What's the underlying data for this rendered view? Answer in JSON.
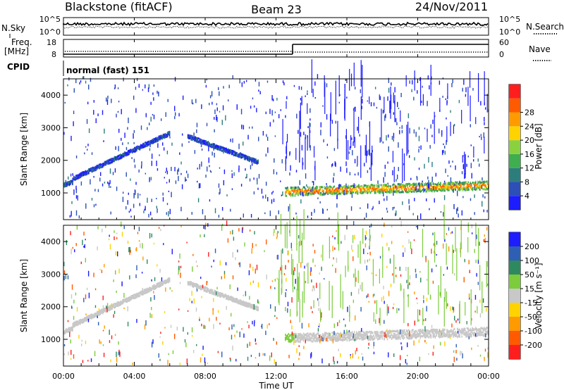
{
  "header": {
    "radar": "Blackstone (fitACF)",
    "beam": "Beam 23",
    "date": "24/Nov/2011"
  },
  "status_panels": {
    "nsky_label": "N.Sky",
    "nsky_ticks": [
      "10^5",
      "10^0"
    ],
    "nsearch_ticks": [
      "10^5",
      "10^0"
    ],
    "nsearch_label": "N.Search",
    "freq_label_1": "Freq.",
    "freq_label_2": "[MHz]",
    "freq_ticks": [
      "18",
      "8"
    ],
    "nave_ticks": [
      "60",
      "0"
    ],
    "nave_label": "Nave",
    "cpid_label": "CPID",
    "cpid_value": "normal (fast) 151"
  },
  "colors": {
    "power_scale": [
      "#1d1dff",
      "#2c4fb8",
      "#2e7d7d",
      "#3fae4f",
      "#8ad13f",
      "#ffd200",
      "#ff9a00",
      "#ff5a00",
      "#ff1e1e"
    ],
    "velocity_scale": [
      "#1d1dff",
      "#2f5fb5",
      "#2e8a5e",
      "#7ccc3c",
      "#c8c8c8",
      "#ffd200",
      "#ff9a00",
      "#ff5a00",
      "#ff1e1e"
    ]
  },
  "chart_data": [
    {
      "type": "heatmap",
      "panel": "power",
      "xlabel": "Time UT",
      "ylabel": "Slant Range [km]",
      "x_ticks": [
        "00:00",
        "04:00",
        "08:00",
        "12:00",
        "16:00",
        "20:00",
        "00:00"
      ],
      "x_range_hours": [
        0,
        24
      ],
      "y_ticks": [
        1000,
        2000,
        3000,
        4000
      ],
      "y_range_km": [
        180,
        4500
      ],
      "colorbar_label": "Power [dB]",
      "colorbar_ticks": [
        "4",
        "8",
        "12",
        "16",
        "20",
        "24",
        "28"
      ],
      "colorbar_range": [
        0,
        30
      ],
      "echo_bands": [
        {
          "t_start": 0.0,
          "t_end": 0.5,
          "range_start_km": 1200,
          "range_end_km": 1300,
          "value_db": 6
        },
        {
          "t_start": 0.5,
          "t_end": 6.0,
          "range_start_km": 1400,
          "range_end_km": 2800,
          "value_db": 4
        },
        {
          "t_start": 7.0,
          "t_end": 11.0,
          "range_start_km": 2700,
          "range_end_km": 1900,
          "value_db": 4
        },
        {
          "t_start": 12.5,
          "t_end": 24.0,
          "range_start_km": 1000,
          "range_end_km": 1200,
          "value_db": 12
        }
      ]
    },
    {
      "type": "heatmap",
      "panel": "velocity",
      "xlabel": "Time UT",
      "ylabel": "Slant Range [km]",
      "x_ticks": [
        "00:00",
        "04:00",
        "08:00",
        "12:00",
        "16:00",
        "20:00",
        "00:00"
      ],
      "x_range_hours": [
        0,
        24
      ],
      "y_ticks": [
        1000,
        2000,
        3000,
        4000
      ],
      "y_range_km": [
        180,
        4500
      ],
      "colorbar_label": "Velocity [m s⁻¹]",
      "colorbar_ticks": [
        "200",
        "100",
        "50",
        "15",
        "-15",
        "-50",
        "-100",
        "-200"
      ],
      "colorbar_range": [
        -250,
        250
      ]
    }
  ]
}
